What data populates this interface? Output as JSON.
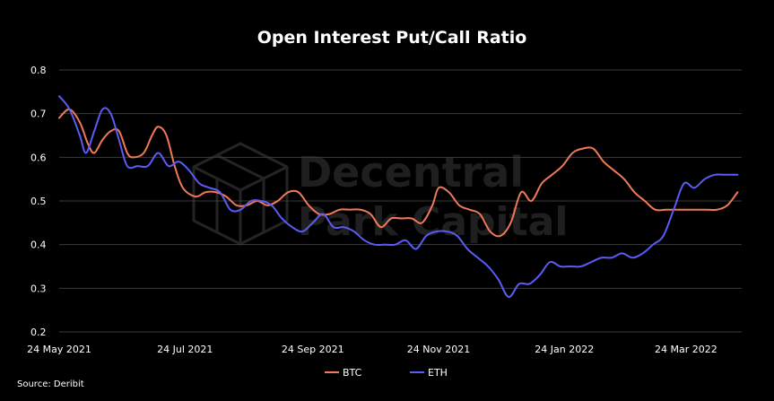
{
  "chart_data": {
    "type": "line",
    "title": "Open Interest Put/Call Ratio",
    "xlabel": "",
    "ylabel": "",
    "ylim": [
      0.2,
      0.8
    ],
    "y_ticks": [
      "0.2",
      "0.3",
      "0.4",
      "0.5",
      "0.6",
      "0.7",
      "0.8"
    ],
    "x_ticks": [
      {
        "date": "2021-05-24",
        "label": "24 May 2021"
      },
      {
        "date": "2021-07-24",
        "label": "24 Jul 2021"
      },
      {
        "date": "2021-09-24",
        "label": "24 Sep 2021"
      },
      {
        "date": "2021-11-24",
        "label": "24 Nov 2021"
      },
      {
        "date": "2022-01-24",
        "label": "24 Jan 2022"
      },
      {
        "date": "2022-03-24",
        "label": "24 Mar 2022"
      }
    ],
    "xlim": [
      "2021-05-24",
      "2022-04-20"
    ],
    "grid": "horizontal",
    "legend_position": "bottom-center",
    "source": "Source: Deribit",
    "watermark": [
      "Decentral",
      "Park Capital"
    ],
    "series": [
      {
        "name": "BTC",
        "color": "#f0795a",
        "points": [
          [
            "2021-05-24",
            0.69
          ],
          [
            "2021-05-29",
            0.71
          ],
          [
            "2021-06-03",
            0.68
          ],
          [
            "2021-06-07",
            0.63
          ],
          [
            "2021-06-10",
            0.61
          ],
          [
            "2021-06-14",
            0.64
          ],
          [
            "2021-06-18",
            0.66
          ],
          [
            "2021-06-22",
            0.66
          ],
          [
            "2021-06-26",
            0.61
          ],
          [
            "2021-06-29",
            0.6
          ],
          [
            "2021-07-04",
            0.61
          ],
          [
            "2021-07-08",
            0.65
          ],
          [
            "2021-07-11",
            0.67
          ],
          [
            "2021-07-15",
            0.65
          ],
          [
            "2021-07-19",
            0.58
          ],
          [
            "2021-07-23",
            0.53
          ],
          [
            "2021-07-29",
            0.51
          ],
          [
            "2021-08-03",
            0.52
          ],
          [
            "2021-08-08",
            0.52
          ],
          [
            "2021-08-13",
            0.51
          ],
          [
            "2021-08-18",
            0.49
          ],
          [
            "2021-08-23",
            0.49
          ],
          [
            "2021-08-28",
            0.5
          ],
          [
            "2021-09-02",
            0.49
          ],
          [
            "2021-09-07",
            0.5
          ],
          [
            "2021-09-12",
            0.52
          ],
          [
            "2021-09-17",
            0.52
          ],
          [
            "2021-09-22",
            0.49
          ],
          [
            "2021-09-27",
            0.47
          ],
          [
            "2021-10-02",
            0.47
          ],
          [
            "2021-10-07",
            0.48
          ],
          [
            "2021-10-12",
            0.48
          ],
          [
            "2021-10-17",
            0.48
          ],
          [
            "2021-10-22",
            0.47
          ],
          [
            "2021-10-27",
            0.44
          ],
          [
            "2021-11-01",
            0.46
          ],
          [
            "2021-11-06",
            0.46
          ],
          [
            "2021-11-11",
            0.46
          ],
          [
            "2021-11-16",
            0.45
          ],
          [
            "2021-11-21",
            0.49
          ],
          [
            "2021-11-24",
            0.53
          ],
          [
            "2021-11-29",
            0.52
          ],
          [
            "2021-12-04",
            0.49
          ],
          [
            "2021-12-09",
            0.48
          ],
          [
            "2021-12-14",
            0.47
          ],
          [
            "2021-12-19",
            0.43
          ],
          [
            "2021-12-24",
            0.42
          ],
          [
            "2021-12-29",
            0.45
          ],
          [
            "2022-01-03",
            0.52
          ],
          [
            "2022-01-08",
            0.5
          ],
          [
            "2022-01-13",
            0.54
          ],
          [
            "2022-01-18",
            0.56
          ],
          [
            "2022-01-23",
            0.58
          ],
          [
            "2022-01-28",
            0.61
          ],
          [
            "2022-02-02",
            0.62
          ],
          [
            "2022-02-07",
            0.62
          ],
          [
            "2022-02-12",
            0.59
          ],
          [
            "2022-02-17",
            0.57
          ],
          [
            "2022-02-22",
            0.55
          ],
          [
            "2022-02-27",
            0.52
          ],
          [
            "2022-03-04",
            0.5
          ],
          [
            "2022-03-09",
            0.48
          ],
          [
            "2022-03-14",
            0.48
          ],
          [
            "2022-03-19",
            0.48
          ],
          [
            "2022-03-24",
            0.48
          ],
          [
            "2022-03-29",
            0.48
          ],
          [
            "2022-04-03",
            0.48
          ],
          [
            "2022-04-08",
            0.48
          ],
          [
            "2022-04-13",
            0.49
          ],
          [
            "2022-04-18",
            0.52
          ]
        ]
      },
      {
        "name": "ETH",
        "color": "#5b5bf5",
        "points": [
          [
            "2021-05-24",
            0.74
          ],
          [
            "2021-05-29",
            0.71
          ],
          [
            "2021-06-03",
            0.65
          ],
          [
            "2021-06-06",
            0.61
          ],
          [
            "2021-06-10",
            0.66
          ],
          [
            "2021-06-14",
            0.71
          ],
          [
            "2021-06-18",
            0.7
          ],
          [
            "2021-06-22",
            0.64
          ],
          [
            "2021-06-26",
            0.58
          ],
          [
            "2021-07-01",
            0.58
          ],
          [
            "2021-07-06",
            0.58
          ],
          [
            "2021-07-11",
            0.61
          ],
          [
            "2021-07-16",
            0.58
          ],
          [
            "2021-07-21",
            0.59
          ],
          [
            "2021-07-26",
            0.57
          ],
          [
            "2021-07-31",
            0.54
          ],
          [
            "2021-08-05",
            0.53
          ],
          [
            "2021-08-10",
            0.52
          ],
          [
            "2021-08-15",
            0.48
          ],
          [
            "2021-08-20",
            0.48
          ],
          [
            "2021-08-25",
            0.5
          ],
          [
            "2021-08-30",
            0.5
          ],
          [
            "2021-09-04",
            0.49
          ],
          [
            "2021-09-09",
            0.46
          ],
          [
            "2021-09-14",
            0.44
          ],
          [
            "2021-09-19",
            0.43
          ],
          [
            "2021-09-24",
            0.45
          ],
          [
            "2021-09-29",
            0.47
          ],
          [
            "2021-10-04",
            0.44
          ],
          [
            "2021-10-09",
            0.44
          ],
          [
            "2021-10-14",
            0.43
          ],
          [
            "2021-10-19",
            0.41
          ],
          [
            "2021-10-24",
            0.4
          ],
          [
            "2021-10-29",
            0.4
          ],
          [
            "2021-11-03",
            0.4
          ],
          [
            "2021-11-08",
            0.41
          ],
          [
            "2021-11-13",
            0.39
          ],
          [
            "2021-11-18",
            0.42
          ],
          [
            "2021-11-23",
            0.43
          ],
          [
            "2021-11-28",
            0.43
          ],
          [
            "2021-12-03",
            0.42
          ],
          [
            "2021-12-08",
            0.39
          ],
          [
            "2021-12-13",
            0.37
          ],
          [
            "2021-12-18",
            0.35
          ],
          [
            "2021-12-23",
            0.32
          ],
          [
            "2021-12-28",
            0.28
          ],
          [
            "2022-01-02",
            0.31
          ],
          [
            "2022-01-07",
            0.31
          ],
          [
            "2022-01-12",
            0.33
          ],
          [
            "2022-01-17",
            0.36
          ],
          [
            "2022-01-22",
            0.35
          ],
          [
            "2022-01-27",
            0.35
          ],
          [
            "2022-02-01",
            0.35
          ],
          [
            "2022-02-06",
            0.36
          ],
          [
            "2022-02-11",
            0.37
          ],
          [
            "2022-02-16",
            0.37
          ],
          [
            "2022-02-21",
            0.38
          ],
          [
            "2022-02-26",
            0.37
          ],
          [
            "2022-03-03",
            0.38
          ],
          [
            "2022-03-08",
            0.4
          ],
          [
            "2022-03-13",
            0.42
          ],
          [
            "2022-03-18",
            0.48
          ],
          [
            "2022-03-23",
            0.54
          ],
          [
            "2022-03-28",
            0.53
          ],
          [
            "2022-04-02",
            0.55
          ],
          [
            "2022-04-07",
            0.56
          ],
          [
            "2022-04-12",
            0.56
          ],
          [
            "2022-04-18",
            0.56
          ]
        ]
      }
    ]
  }
}
